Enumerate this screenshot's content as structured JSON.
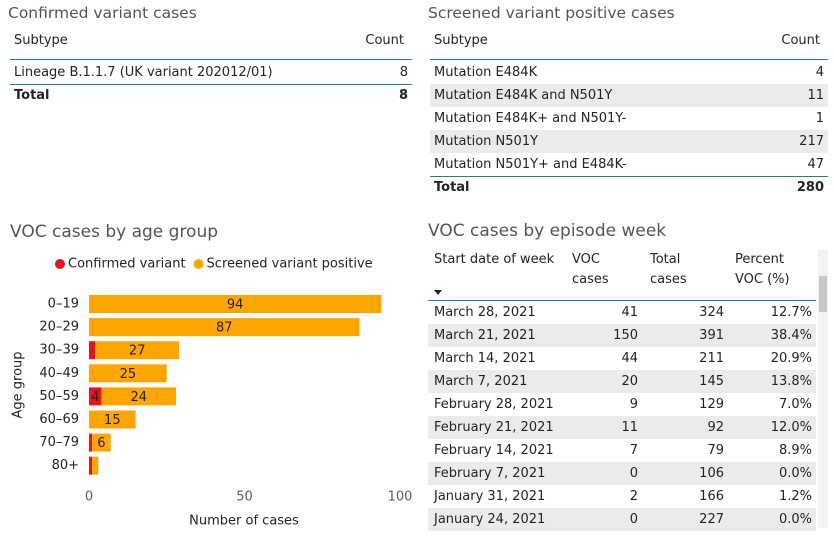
{
  "confirmed": {
    "title": "Confirmed variant cases",
    "columns": [
      "Subtype",
      "Count"
    ],
    "rows": [
      [
        "Lineage B.1.1.7 (UK variant 202012/01)",
        8
      ]
    ],
    "total": [
      "Total",
      8
    ]
  },
  "screened": {
    "title": "Screened variant positive cases",
    "columns": [
      "Subtype",
      "Count"
    ],
    "rows": [
      [
        "Mutation E484K",
        4
      ],
      [
        "Mutation E484K and N501Y",
        11
      ],
      [
        "Mutation E484K+ and N501Y-",
        1
      ],
      [
        "Mutation N501Y",
        217
      ],
      [
        "Mutation N501Y+ and E484K-",
        47
      ]
    ],
    "total": [
      "Total",
      280
    ]
  },
  "chart_data": {
    "type": "bar",
    "orientation": "horizontal",
    "stacked": true,
    "title": "VOC cases by age group",
    "xlabel": "Number of cases",
    "ylabel": "Age group",
    "categories": [
      "0–19",
      "20–29",
      "30–39",
      "40–49",
      "50–59",
      "60–69",
      "70–79",
      "80+"
    ],
    "series": [
      {
        "name": "Confirmed variant",
        "color": "#e8131b",
        "values": [
          0,
          0,
          2,
          0,
          4,
          0,
          1,
          1
        ]
      },
      {
        "name": "Screened variant positive",
        "color": "#ffa500",
        "values": [
          94,
          87,
          27,
          25,
          24,
          15,
          6,
          2
        ]
      }
    ],
    "xlim": [
      0,
      100
    ],
    "xticks": [
      0,
      50,
      100
    ],
    "grid": false
  },
  "episodes": {
    "title": "VOC cases by episode week",
    "columns": [
      "Start date of week",
      "VOC cases",
      "Total cases",
      "Percent VOC (%)"
    ],
    "rows": [
      [
        "March 28, 2021",
        41,
        324,
        "12.7%"
      ],
      [
        "March 21, 2021",
        150,
        391,
        "38.4%"
      ],
      [
        "March 14, 2021",
        44,
        211,
        "20.9%"
      ],
      [
        "March 7, 2021",
        20,
        145,
        "13.8%"
      ],
      [
        "February 28, 2021",
        9,
        129,
        "7.0%"
      ],
      [
        "February 21, 2021",
        11,
        92,
        "12.0%"
      ],
      [
        "February 14, 2021",
        7,
        79,
        "8.9%"
      ],
      [
        "February 7, 2021",
        0,
        106,
        "0.0%"
      ],
      [
        "January 31, 2021",
        2,
        166,
        "1.2%"
      ],
      [
        "January 24, 2021",
        0,
        227,
        "0.0%"
      ]
    ]
  }
}
